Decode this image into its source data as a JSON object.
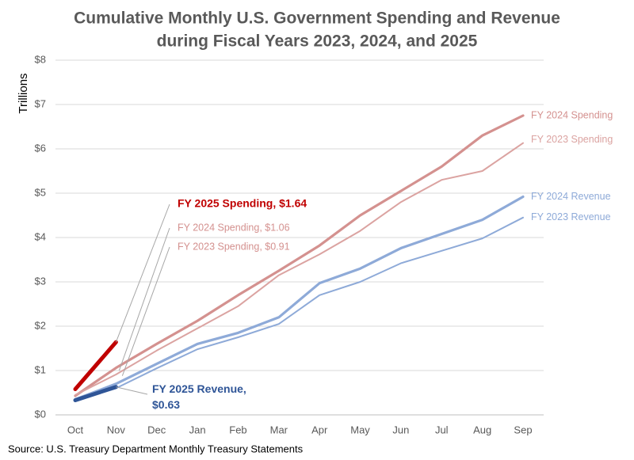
{
  "chart_data": {
    "type": "line",
    "title": "Cumulative Monthly U.S. Government Spending and Revenue",
    "subtitle": "during Fiscal Years 2023, 2024, and 2025",
    "y_label": "Trillions",
    "source": "Source: U.S. Treasury Department Monthly Treasury Statements",
    "categories": [
      "Oct",
      "Nov",
      "Dec",
      "Jan",
      "Feb",
      "Mar",
      "Apr",
      "May",
      "Jun",
      "Jul",
      "Aug",
      "Sep"
    ],
    "ylim": [
      0,
      8
    ],
    "yticks": [
      {
        "value": 0,
        "label": "$0"
      },
      {
        "value": 1,
        "label": "$1"
      },
      {
        "value": 2,
        "label": "$2"
      },
      {
        "value": 3,
        "label": "$3"
      },
      {
        "value": 4,
        "label": "$4"
      },
      {
        "value": 5,
        "label": "$5"
      },
      {
        "value": 6,
        "label": "$6"
      },
      {
        "value": 7,
        "label": "$7"
      },
      {
        "value": 8,
        "label": "$8"
      }
    ],
    "grid": true,
    "series": [
      {
        "name": "FY 2024 Spending",
        "color": "#d4918f",
        "values": [
          0.43,
          1.06,
          1.6,
          2.12,
          2.7,
          3.25,
          3.82,
          4.5,
          5.05,
          5.6,
          6.3,
          6.75
        ]
      },
      {
        "name": "FY 2023 Spending",
        "color": "#dba3a1",
        "values": [
          0.45,
          0.91,
          1.45,
          1.95,
          2.45,
          3.15,
          3.62,
          4.15,
          4.8,
          5.3,
          5.5,
          6.13
        ]
      },
      {
        "name": "FY 2024 Revenue",
        "color": "#8eaad8",
        "values": [
          0.35,
          0.7,
          1.15,
          1.6,
          1.85,
          2.2,
          2.97,
          3.3,
          3.76,
          4.08,
          4.4,
          4.92
        ]
      },
      {
        "name": "FY 2023 Revenue",
        "color": "#8eaad8",
        "values": [
          0.32,
          0.6,
          1.05,
          1.48,
          1.75,
          2.05,
          2.7,
          3.0,
          3.42,
          3.7,
          3.98,
          4.45
        ]
      },
      {
        "color": "#c00000",
        "values": [
          0.58,
          1.64,
          null,
          null,
          null,
          null,
          null,
          null,
          null,
          null,
          null,
          null
        ]
      },
      {
        "color": "#2f5597",
        "values": [
          0.33,
          0.63,
          null,
          null,
          null,
          null,
          null,
          null,
          null,
          null,
          null,
          null
        ]
      }
    ],
    "annotations": [
      "FY 2025 Spending, $1.64",
      "FY 2024 Spending, $1.06",
      "FY 2023 Spending, $0.91",
      "FY 2025 Revenue, $0.63"
    ]
  }
}
